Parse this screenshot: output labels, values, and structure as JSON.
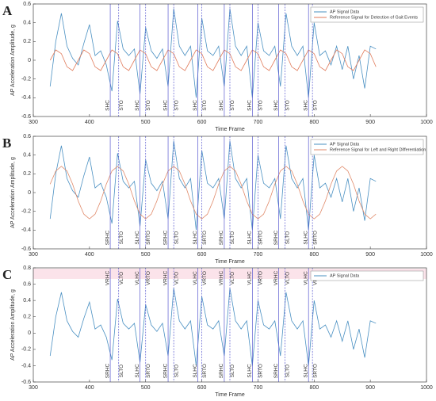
{
  "chart_data": [
    {
      "type": "line",
      "panel_label": "A",
      "x_label": "Time Frame",
      "y_label": "AP Acceleration Amplitude, g",
      "xlim": [
        300,
        1000
      ],
      "xticks": [
        300,
        400,
        500,
        600,
        700,
        800,
        900,
        1000
      ],
      "ylim": [
        -0.6,
        0.6
      ],
      "yticks": [
        -0.6,
        -0.4,
        -0.2,
        0,
        0.2,
        0.4,
        0.6
      ],
      "legend": "upper right",
      "x": [
        330,
        340,
        350,
        360,
        370,
        380,
        390,
        400,
        410,
        420,
        430,
        440,
        450,
        460,
        470,
        480,
        490,
        500,
        510,
        520,
        530,
        540,
        550,
        560,
        570,
        580,
        590,
        600,
        610,
        620,
        630,
        640,
        650,
        660,
        670,
        680,
        690,
        700,
        710,
        720,
        730,
        740,
        750,
        760,
        770,
        780,
        790,
        800,
        810,
        820,
        830,
        840,
        850,
        860,
        870,
        880,
        890,
        900,
        910
      ],
      "series": [
        {
          "name": "AP Signal Data",
          "color": "#4a90c2",
          "values": [
            -0.28,
            0.2,
            0.5,
            0.15,
            0.02,
            -0.05,
            0.18,
            0.38,
            0.05,
            0.1,
            -0.05,
            -0.33,
            0.42,
            0.12,
            0.05,
            0.12,
            -0.36,
            0.35,
            0.1,
            0.02,
            0.12,
            -0.28,
            0.55,
            0.15,
            0.05,
            0.15,
            -0.4,
            0.45,
            0.1,
            0.05,
            0.15,
            -0.28,
            0.55,
            0.15,
            0.05,
            0.15,
            -0.4,
            0.4,
            0.1,
            0.05,
            0.15,
            -0.28,
            0.5,
            0.15,
            0.05,
            0.15,
            -0.4,
            0.4,
            0.05,
            0.1,
            -0.05,
            0.15,
            -0.1,
            0.15,
            -0.2,
            0.05,
            -0.3,
            0.15,
            0.12
          ]
        },
        {
          "name": "Reference Signal for Detection of Gait Events",
          "color": "#e07a5a",
          "values": [
            0,
            0.11,
            0.07,
            -0.07,
            -0.11,
            0,
            0.11,
            0.07,
            -0.07,
            -0.11,
            0,
            0.11,
            0.07,
            -0.07,
            -0.11,
            0,
            0.11,
            0.07,
            -0.07,
            -0.11,
            0,
            0.11,
            0.07,
            -0.07,
            -0.11,
            0,
            0.11,
            0.07,
            -0.07,
            -0.11,
            0,
            0.11,
            0.07,
            -0.07,
            -0.11,
            0,
            0.11,
            0.07,
            -0.07,
            -0.11,
            0,
            0.11,
            0.07,
            -0.07,
            -0.11,
            0,
            0.11,
            0.07,
            -0.07,
            -0.11,
            0,
            0.11,
            0.07,
            -0.07,
            -0.11,
            0,
            0.11,
            0.07,
            -0.07
          ]
        }
      ],
      "events": [
        {
          "x": 437,
          "label": "SHC",
          "style": "solid"
        },
        {
          "x": 452,
          "label": "STO",
          "style": "dashed"
        },
        {
          "x": 490,
          "label": "SHC",
          "style": "solid"
        },
        {
          "x": 500,
          "label": "STO",
          "style": "dashed"
        },
        {
          "x": 540,
          "label": "SHC",
          "style": "solid"
        },
        {
          "x": 550,
          "label": "STO",
          "style": "dashed"
        },
        {
          "x": 593,
          "label": "SHC",
          "style": "solid"
        },
        {
          "x": 600,
          "label": "STO",
          "style": "dashed"
        },
        {
          "x": 640,
          "label": "SHC",
          "style": "solid"
        },
        {
          "x": 650,
          "label": "STO",
          "style": "dashed"
        },
        {
          "x": 690,
          "label": "SHC",
          "style": "solid"
        },
        {
          "x": 700,
          "label": "STO",
          "style": "dashed"
        },
        {
          "x": 737,
          "label": "SHC",
          "style": "solid"
        },
        {
          "x": 748,
          "label": "STO",
          "style": "dashed"
        },
        {
          "x": 790,
          "label": "SHC",
          "style": "solid"
        },
        {
          "x": 797,
          "label": "STO",
          "style": "dashed"
        }
      ]
    },
    {
      "type": "line",
      "panel_label": "B",
      "x_label": "Time Frame",
      "y_label": "AP Acceleration Amplitude, g",
      "xlim": [
        300,
        1000
      ],
      "xticks": [
        300,
        400,
        500,
        600,
        700,
        800,
        900,
        1000
      ],
      "ylim": [
        -0.6,
        0.6
      ],
      "yticks": [
        -0.6,
        -0.4,
        -0.2,
        0,
        0.2,
        0.4,
        0.6
      ],
      "legend": "upper right",
      "x": [
        330,
        340,
        350,
        360,
        370,
        380,
        390,
        400,
        410,
        420,
        430,
        440,
        450,
        460,
        470,
        480,
        490,
        500,
        510,
        520,
        530,
        540,
        550,
        560,
        570,
        580,
        590,
        600,
        610,
        620,
        630,
        640,
        650,
        660,
        670,
        680,
        690,
        700,
        710,
        720,
        730,
        740,
        750,
        760,
        770,
        780,
        790,
        800,
        810,
        820,
        830,
        840,
        850,
        860,
        870,
        880,
        890,
        900,
        910
      ],
      "series": [
        {
          "name": "AP Signal Data",
          "color": "#4a90c2",
          "values": [
            -0.28,
            0.2,
            0.5,
            0.15,
            0.02,
            -0.05,
            0.18,
            0.38,
            0.05,
            0.1,
            -0.05,
            -0.33,
            0.42,
            0.12,
            0.05,
            0.12,
            -0.36,
            0.35,
            0.1,
            0.02,
            0.12,
            -0.28,
            0.55,
            0.15,
            0.05,
            0.15,
            -0.4,
            0.45,
            0.1,
            0.05,
            0.15,
            -0.28,
            0.55,
            0.15,
            0.05,
            0.15,
            -0.4,
            0.4,
            0.1,
            0.05,
            0.15,
            -0.28,
            0.5,
            0.15,
            0.05,
            0.15,
            -0.4,
            0.4,
            0.05,
            0.1,
            -0.05,
            0.15,
            -0.1,
            0.15,
            -0.2,
            0.05,
            -0.3,
            0.15,
            0.12
          ]
        },
        {
          "name": "Reference Signal for Left and Right Differentiation",
          "color": "#e08a6a",
          "values": [
            0.09,
            0.23,
            0.28,
            0.23,
            0.09,
            -0.09,
            -0.23,
            -0.28,
            -0.23,
            -0.09,
            0.09,
            0.23,
            0.28,
            0.23,
            0.09,
            -0.09,
            -0.23,
            -0.28,
            -0.23,
            -0.09,
            0.09,
            0.23,
            0.28,
            0.23,
            0.09,
            -0.09,
            -0.23,
            -0.28,
            -0.23,
            -0.09,
            0.09,
            0.23,
            0.28,
            0.23,
            0.09,
            -0.09,
            -0.23,
            -0.28,
            -0.23,
            -0.09,
            0.09,
            0.23,
            0.28,
            0.23,
            0.09,
            -0.09,
            -0.23,
            -0.28,
            -0.23,
            -0.09,
            0.09,
            0.23,
            0.28,
            0.23,
            0.09,
            -0.09,
            -0.23,
            -0.28,
            -0.23
          ]
        }
      ],
      "events": [
        {
          "x": 437,
          "label": "SRHC",
          "style": "solid"
        },
        {
          "x": 452,
          "label": "SLTO",
          "style": "dashed"
        },
        {
          "x": 490,
          "label": "SLHC",
          "style": "solid"
        },
        {
          "x": 500,
          "label": "SRTO",
          "style": "dashed"
        },
        {
          "x": 540,
          "label": "SRHC",
          "style": "solid"
        },
        {
          "x": 550,
          "label": "SLTO",
          "style": "dashed"
        },
        {
          "x": 593,
          "label": "SLHC",
          "style": "solid"
        },
        {
          "x": 600,
          "label": "SRTO",
          "style": "dashed"
        },
        {
          "x": 640,
          "label": "SRHC",
          "style": "solid"
        },
        {
          "x": 650,
          "label": "SLTO",
          "style": "dashed"
        },
        {
          "x": 690,
          "label": "SLHC",
          "style": "solid"
        },
        {
          "x": 700,
          "label": "SRTO",
          "style": "dashed"
        },
        {
          "x": 737,
          "label": "SRHC",
          "style": "solid"
        },
        {
          "x": 748,
          "label": "SLTO",
          "style": "dashed"
        },
        {
          "x": 790,
          "label": "SLHC",
          "style": "solid"
        },
        {
          "x": 797,
          "label": "SRTO",
          "style": "dashed"
        }
      ]
    },
    {
      "type": "line",
      "panel_label": "C",
      "x_label": "Time Frame",
      "y_label": "AP Acceleration Amplitude, g",
      "xlim": [
        300,
        1000
      ],
      "xticks": [
        300,
        400,
        500,
        600,
        700,
        800,
        900,
        1000
      ],
      "ylim": [
        -0.6,
        0.8
      ],
      "yticks": [
        -0.6,
        -0.4,
        -0.2,
        0,
        0.2,
        0.4,
        0.6,
        0.8
      ],
      "legend": "upper right",
      "x": [
        330,
        340,
        350,
        360,
        370,
        380,
        390,
        400,
        410,
        420,
        430,
        440,
        450,
        460,
        470,
        480,
        490,
        500,
        510,
        520,
        530,
        540,
        550,
        560,
        570,
        580,
        590,
        600,
        610,
        620,
        630,
        640,
        650,
        660,
        670,
        680,
        690,
        700,
        710,
        720,
        730,
        740,
        750,
        760,
        770,
        780,
        790,
        800,
        810,
        820,
        830,
        840,
        850,
        860,
        870,
        880,
        890,
        900,
        910
      ],
      "series": [
        {
          "name": "AP Signal Data",
          "color": "#4a90c2",
          "values": [
            -0.28,
            0.2,
            0.5,
            0.15,
            0.02,
            -0.05,
            0.18,
            0.38,
            0.05,
            0.1,
            -0.05,
            -0.33,
            0.42,
            0.12,
            0.05,
            0.12,
            -0.36,
            0.35,
            0.1,
            0.02,
            0.12,
            -0.28,
            0.55,
            0.15,
            0.05,
            0.15,
            -0.4,
            0.45,
            0.1,
            0.05,
            0.15,
            -0.28,
            0.55,
            0.15,
            0.05,
            0.15,
            -0.4,
            0.4,
            0.1,
            0.05,
            0.15,
            -0.28,
            0.5,
            0.15,
            0.05,
            0.15,
            -0.4,
            0.4,
            0.05,
            0.1,
            -0.05,
            0.15,
            -0.1,
            0.15,
            -0.2,
            0.05,
            -0.3,
            0.15,
            0.12
          ]
        }
      ],
      "events": [
        {
          "x": 437,
          "label": "SRHC",
          "top_label": "VRHC",
          "style": "solid"
        },
        {
          "x": 452,
          "label": "SLTO",
          "top_label": "VLTO",
          "style": "dashed"
        },
        {
          "x": 490,
          "label": "SLHC",
          "top_label": "VLHC",
          "style": "solid"
        },
        {
          "x": 500,
          "label": "SRTO",
          "top_label": "VRTO",
          "style": "dashed"
        },
        {
          "x": 540,
          "label": "SRHC",
          "top_label": "VRHC",
          "style": "solid"
        },
        {
          "x": 550,
          "label": "SLTO",
          "top_label": "VLTO",
          "style": "dashed"
        },
        {
          "x": 593,
          "label": "SLHC",
          "top_label": "VLHC",
          "style": "solid"
        },
        {
          "x": 600,
          "label": "SRTO",
          "top_label": "VRTO",
          "style": "dashed"
        },
        {
          "x": 640,
          "label": "SRHC",
          "top_label": "VRHC",
          "style": "solid"
        },
        {
          "x": 650,
          "label": "SLTO",
          "top_label": "VLTO",
          "style": "dashed"
        },
        {
          "x": 690,
          "label": "SLHC",
          "top_label": "VLHC",
          "style": "solid"
        },
        {
          "x": 700,
          "label": "SRTO",
          "top_label": "VRTO",
          "style": "dashed"
        },
        {
          "x": 737,
          "label": "SRHC",
          "top_label": "VRHC",
          "style": "solid"
        },
        {
          "x": 748,
          "label": "SLTO",
          "top_label": "VLTO",
          "style": "dashed"
        },
        {
          "x": 790,
          "label": "SLHC",
          "top_label": "VLHC",
          "style": "solid"
        },
        {
          "x": 797,
          "label": "SRTO",
          "top_label": "VRTO",
          "style": "dashed"
        }
      ]
    }
  ]
}
